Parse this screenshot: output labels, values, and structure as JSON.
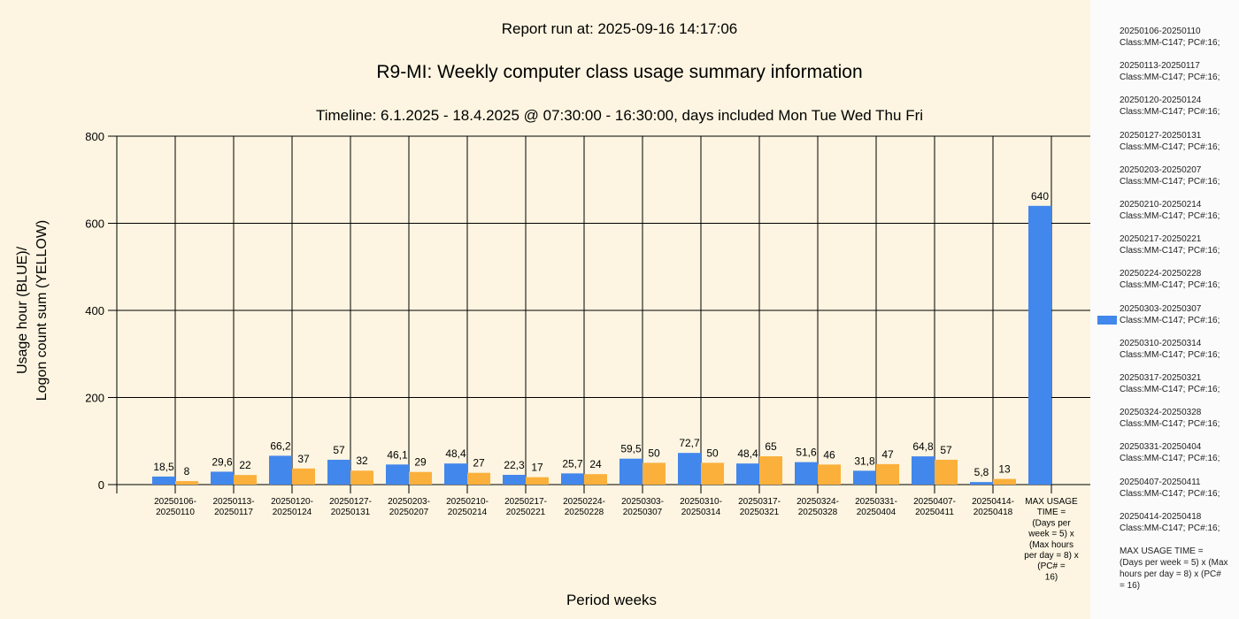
{
  "header": {
    "report_run": "Report run at: 2025-09-16 14:17:06"
  },
  "colors": {
    "usage": "#4287ec",
    "logon": "#fbb03b",
    "background": "#fdf5e1",
    "legend_bg": "#fbfbfb"
  },
  "chart_data": {
    "type": "bar",
    "title": "R9-MI: Weekly computer class usage summary information",
    "subtitle": "Timeline:  6.1.2025  - 18.4.2025  @  07:30:00 -  16:30:00, days included Mon Tue Wed Thu Fri",
    "xlabel": "Period weeks",
    "ylabel_line1": "Usage hour (BLUE)/",
    "ylabel_line2": "Logon count sum (YELLOW)",
    "ylim": [
      0,
      800
    ],
    "yticks": [
      "0",
      "200",
      "400",
      "600",
      "800"
    ],
    "grid": true,
    "legend_position": "right",
    "categories": [
      [
        "20250106-",
        "20250110"
      ],
      [
        "20250113-",
        "20250117"
      ],
      [
        "20250120-",
        "20250124"
      ],
      [
        "20250127-",
        "20250131"
      ],
      [
        "20250203-",
        "20250207"
      ],
      [
        "20250210-",
        "20250214"
      ],
      [
        "20250217-",
        "20250221"
      ],
      [
        "20250224-",
        "20250228"
      ],
      [
        "20250303-",
        "20250307"
      ],
      [
        "20250310-",
        "20250314"
      ],
      [
        "20250317-",
        "20250321"
      ],
      [
        "20250324-",
        "20250328"
      ],
      [
        "20250331-",
        "20250404"
      ],
      [
        "20250407-",
        "20250411"
      ],
      [
        "20250414-",
        "20250418"
      ],
      [
        "MAX USAGE",
        "TIME =",
        "(Days per",
        "week = 5) x",
        "(Max hours",
        "per day = 8) x",
        "(PC# =",
        "16)"
      ]
    ],
    "series": [
      {
        "values": [
          18.5,
          29.6,
          66.2,
          57,
          46.1,
          48.4,
          22.3,
          25.7,
          59.5,
          72.7,
          48.4,
          51.6,
          31.8,
          64.8,
          5.8,
          640
        ],
        "labels": [
          "18,5",
          "29,6",
          "66,2",
          "57",
          "46,1",
          "48,4",
          "22,3",
          "25,7",
          "59,5",
          "72,7",
          "48,4",
          "51,6",
          "31,8",
          "64,8",
          "5,8",
          "640"
        ]
      },
      {
        "values": [
          8,
          22,
          37,
          32,
          29,
          27,
          17,
          24,
          50,
          50,
          65,
          46,
          47,
          57,
          13,
          null
        ],
        "labels": [
          "8",
          "22",
          "37",
          "32",
          "29",
          "27",
          "17",
          "24",
          "50",
          "50",
          "65",
          "46",
          "47",
          "57",
          "13",
          ""
        ]
      }
    ],
    "legend": [
      [
        "20250106-20250110",
        "Class:MM-C147; PC#:16;"
      ],
      [
        "20250113-20250117",
        "Class:MM-C147; PC#:16;"
      ],
      [
        "20250120-20250124",
        "Class:MM-C147; PC#:16;"
      ],
      [
        "20250127-20250131",
        "Class:MM-C147; PC#:16;"
      ],
      [
        "20250203-20250207",
        "Class:MM-C147; PC#:16;"
      ],
      [
        "20250210-20250214",
        "Class:MM-C147; PC#:16;"
      ],
      [
        "20250217-20250221",
        "Class:MM-C147; PC#:16;"
      ],
      [
        "20250224-20250228",
        "Class:MM-C147; PC#:16;"
      ],
      [
        "20250303-20250307",
        "Class:MM-C147; PC#:16;"
      ],
      [
        "20250310-20250314",
        "Class:MM-C147; PC#:16;"
      ],
      [
        "20250317-20250321",
        "Class:MM-C147; PC#:16;"
      ],
      [
        "20250324-20250328",
        "Class:MM-C147; PC#:16;"
      ],
      [
        "20250331-20250404",
        "Class:MM-C147; PC#:16;"
      ],
      [
        "20250407-20250411",
        "Class:MM-C147; PC#:16;"
      ],
      [
        "20250414-20250418",
        "Class:MM-C147; PC#:16;"
      ],
      [
        "MAX USAGE TIME =",
        " (Days per week = 5) x (Max",
        "hours per day = 8) x (PC#",
        "= 16)"
      ]
    ],
    "legend_marker_index": 8
  }
}
